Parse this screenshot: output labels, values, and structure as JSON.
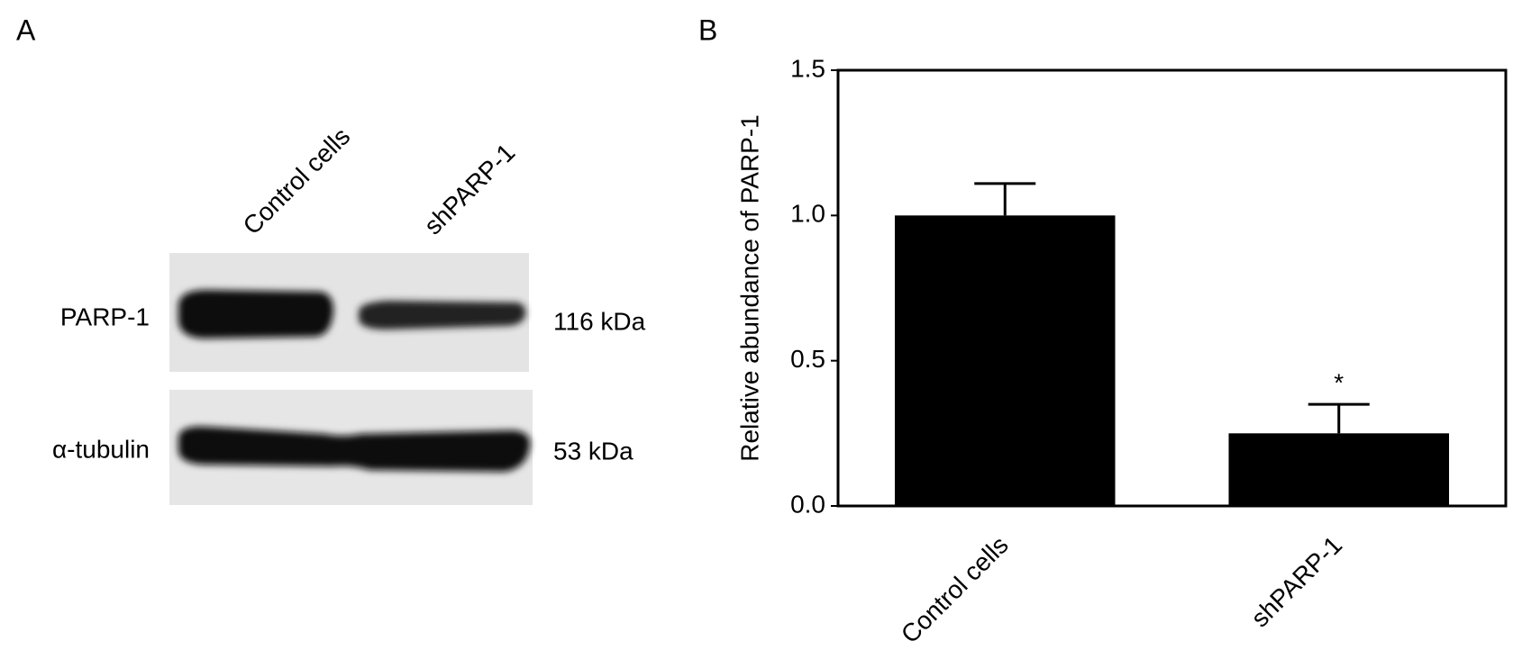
{
  "panel_labels": [
    "A",
    "B"
  ],
  "blot": {
    "lanes": [
      "Control cells",
      "shPARP-1"
    ],
    "rows": [
      {
        "protein": "PARP-1",
        "size": "116 kDa"
      },
      {
        "protein": "α-tubulin",
        "size": "53 kDa"
      }
    ]
  },
  "chart_data": {
    "type": "bar",
    "categories": [
      "Control cells",
      "shPARP-1"
    ],
    "values": [
      1.0,
      0.25
    ],
    "errors": [
      0.11,
      0.1
    ],
    "significance_markers": [
      null,
      "*"
    ],
    "color": "#000000",
    "ylabel": "Relative abundance of PARP-1",
    "ylim": [
      0,
      1.5
    ],
    "yticks": [
      {
        "value": 0,
        "label": "0.0"
      },
      {
        "value": 0.5,
        "label": "0.5"
      },
      {
        "value": 1,
        "label": "1.0"
      },
      {
        "value": 1.5,
        "label": "1.5"
      }
    ]
  }
}
